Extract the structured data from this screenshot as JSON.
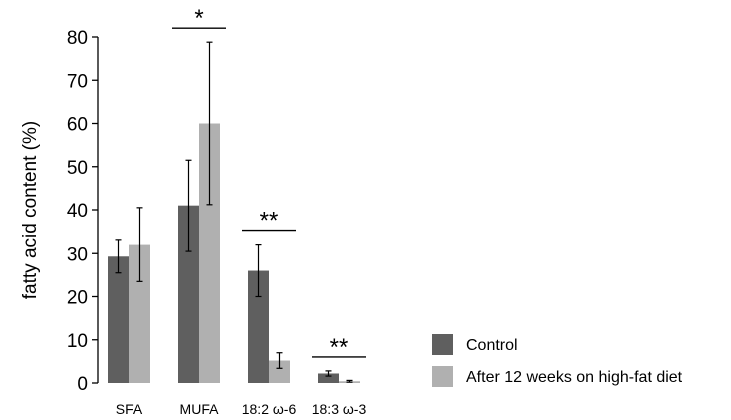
{
  "chart_data": {
    "type": "bar",
    "title": "",
    "xlabel": "",
    "ylabel": "fatty acid content (%)",
    "ylim": [
      0,
      80
    ],
    "yticks": [
      0,
      10,
      20,
      30,
      40,
      50,
      60,
      70,
      80
    ],
    "grid": false,
    "legend_position": "bottom-right",
    "categories": [
      "SFA",
      "MUFA",
      "18:2 ω-6",
      "18:3 ω-3"
    ],
    "series": [
      {
        "name": "Control",
        "color": "#5f5f5f",
        "values": [
          29.3,
          41.0,
          26.0,
          2.2
        ],
        "error": [
          3.8,
          10.5,
          6.0,
          0.6
        ]
      },
      {
        "name": "After 12 weeks on high-fat diet",
        "color": "#b0b0b0",
        "values": [
          32.0,
          60.0,
          5.2,
          0.4
        ],
        "error": [
          8.5,
          18.8,
          1.8,
          0.2
        ]
      }
    ],
    "annotations": [
      {
        "category": "MUFA",
        "label": "*"
      },
      {
        "category": "18:2 ω-6",
        "label": "**"
      },
      {
        "category": "18:3 ω-3",
        "label": "**"
      }
    ]
  }
}
